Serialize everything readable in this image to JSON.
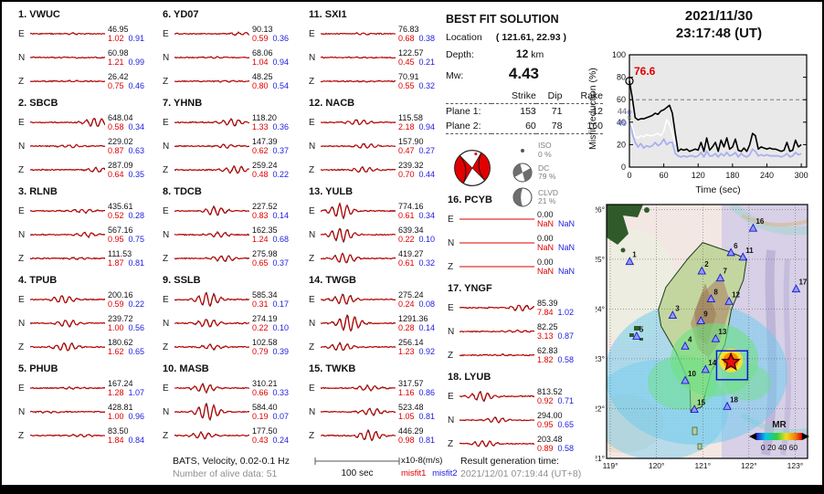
{
  "header": {
    "date": "2021/11/30",
    "time": "23:17:48 (UT)"
  },
  "solution": {
    "title": "BEST FIT SOLUTION",
    "location_label": "Location",
    "location_value": "( 121.61, 22.93 )",
    "depth_label": "Depth:",
    "depth_value": "12",
    "depth_unit": "km",
    "mw_label": "Mw:",
    "mw_value": "4.43",
    "table": {
      "headers": [
        "Strike",
        "Dip",
        "Rake"
      ],
      "rows": [
        {
          "label": "Plane 1:",
          "strike": "153",
          "dip": "71",
          "rake": "12"
        },
        {
          "label": "Plane 2:",
          "strike": "60",
          "dip": "78",
          "rake": "160"
        }
      ]
    },
    "components": [
      {
        "name": "ISO",
        "pct": "0 %"
      },
      {
        "name": "DC",
        "pct": "79 %"
      },
      {
        "name": "CLVD",
        "pct": "21 %"
      }
    ]
  },
  "stations": [
    {
      "num": "1.",
      "name": "VWUC",
      "traces": [
        {
          "c": "E",
          "amp": "46.95",
          "m1": "1.02",
          "m2": "0.91",
          "a": 0.06,
          "p": 0.6
        },
        {
          "c": "N",
          "amp": "60.98",
          "m1": "1.21",
          "m2": "0.99",
          "a": 0.06,
          "p": 0.5
        },
        {
          "c": "Z",
          "amp": "26.42",
          "m1": "0.75",
          "m2": "0.46",
          "a": 0.06,
          "p": 0.55
        }
      ]
    },
    {
      "num": "2.",
      "name": "SBCB",
      "traces": [
        {
          "c": "E",
          "amp": "648.04",
          "m1": "0.58",
          "m2": "0.34",
          "a": 0.55,
          "p": 0.88
        },
        {
          "c": "N",
          "amp": "229.02",
          "m1": "0.87",
          "m2": "0.63",
          "a": 0.18,
          "p": 0.55
        },
        {
          "c": "Z",
          "amp": "287.09",
          "m1": "0.64",
          "m2": "0.35",
          "a": 0.25,
          "p": 0.9
        }
      ]
    },
    {
      "num": "3.",
      "name": "RLNB",
      "traces": [
        {
          "c": "E",
          "amp": "435.61",
          "m1": "0.52",
          "m2": "0.28",
          "a": 0.22,
          "p": 0.72
        },
        {
          "c": "N",
          "amp": "567.16",
          "m1": "0.95",
          "m2": "0.75",
          "a": 0.28,
          "p": 0.75
        },
        {
          "c": "Z",
          "amp": "111.53",
          "m1": "1.87",
          "m2": "0.81",
          "a": 0.1,
          "p": 0.6
        }
      ]
    },
    {
      "num": "4.",
      "name": "TPUB",
      "traces": [
        {
          "c": "E",
          "amp": "200.16",
          "m1": "0.59",
          "m2": "0.22",
          "a": 0.45,
          "p": 0.45
        },
        {
          "c": "N",
          "amp": "239.72",
          "m1": "1.00",
          "m2": "0.56",
          "a": 0.4,
          "p": 0.5
        },
        {
          "c": "Z",
          "amp": "180.62",
          "m1": "1.62",
          "m2": "0.65",
          "a": 0.5,
          "p": 0.48
        }
      ]
    },
    {
      "num": "5.",
      "name": "PHUB",
      "traces": [
        {
          "c": "E",
          "amp": "167.24",
          "m1": "1.28",
          "m2": "1.07",
          "a": 0.1,
          "p": 0.55
        },
        {
          "c": "N",
          "amp": "428.81",
          "m1": "1.00",
          "m2": "0.96",
          "a": 0.12,
          "p": 0.25
        },
        {
          "c": "Z",
          "amp": "83.50",
          "m1": "1.84",
          "m2": "0.84",
          "a": 0.14,
          "p": 0.7
        }
      ]
    },
    {
      "num": "6.",
      "name": "YD07",
      "traces": [
        {
          "c": "E",
          "amp": "90.13",
          "m1": "0.59",
          "m2": "0.36",
          "a": 0.15,
          "p": 0.88
        },
        {
          "c": "N",
          "amp": "68.06",
          "m1": "1.04",
          "m2": "0.94",
          "a": 0.07,
          "p": 0.5
        },
        {
          "c": "Z",
          "amp": "48.25",
          "m1": "0.80",
          "m2": "0.54",
          "a": 0.1,
          "p": 0.7
        }
      ]
    },
    {
      "num": "7.",
      "name": "YHNB",
      "traces": [
        {
          "c": "E",
          "amp": "118.20",
          "m1": "1.33",
          "m2": "0.36",
          "a": 0.4,
          "p": 0.78
        },
        {
          "c": "N",
          "amp": "147.39",
          "m1": "0.62",
          "m2": "0.37",
          "a": 0.2,
          "p": 0.68
        },
        {
          "c": "Z",
          "amp": "259.24",
          "m1": "0.48",
          "m2": "0.22",
          "a": 0.45,
          "p": 0.82
        }
      ]
    },
    {
      "num": "8.",
      "name": "TDCB",
      "traces": [
        {
          "c": "E",
          "amp": "227.52",
          "m1": "0.83",
          "m2": "0.14",
          "a": 0.5,
          "p": 0.55
        },
        {
          "c": "N",
          "amp": "162.35",
          "m1": "1.24",
          "m2": "0.68",
          "a": 0.3,
          "p": 0.6
        },
        {
          "c": "Z",
          "amp": "275.98",
          "m1": "0.65",
          "m2": "0.37",
          "a": 0.35,
          "p": 0.65
        }
      ]
    },
    {
      "num": "9.",
      "name": "SSLB",
      "traces": [
        {
          "c": "E",
          "amp": "585.34",
          "m1": "0.31",
          "m2": "0.17",
          "a": 0.8,
          "p": 0.45
        },
        {
          "c": "N",
          "amp": "274.19",
          "m1": "0.22",
          "m2": "0.10",
          "a": 0.5,
          "p": 0.45
        },
        {
          "c": "Z",
          "amp": "102.58",
          "m1": "0.79",
          "m2": "0.39",
          "a": 0.28,
          "p": 0.5
        }
      ]
    },
    {
      "num": "10.",
      "name": "MASB",
      "traces": [
        {
          "c": "E",
          "amp": "310.21",
          "m1": "0.66",
          "m2": "0.33",
          "a": 0.5,
          "p": 0.4
        },
        {
          "c": "N",
          "amp": "584.40",
          "m1": "0.19",
          "m2": "0.07",
          "a": 1.0,
          "p": 0.45
        },
        {
          "c": "Z",
          "amp": "177.50",
          "m1": "0.43",
          "m2": "0.24",
          "a": 0.4,
          "p": 0.38
        }
      ]
    },
    {
      "num": "11.",
      "name": "SXI1",
      "traces": [
        {
          "c": "E",
          "amp": "76.83",
          "m1": "0.68",
          "m2": "0.38",
          "a": 0.08,
          "p": 0.6
        },
        {
          "c": "N",
          "amp": "122.57",
          "m1": "0.45",
          "m2": "0.21",
          "a": 0.08,
          "p": 0.5
        },
        {
          "c": "Z",
          "amp": "70.91",
          "m1": "0.55",
          "m2": "0.32",
          "a": 0.08,
          "p": 0.6
        }
      ]
    },
    {
      "num": "12.",
      "name": "NACB",
      "traces": [
        {
          "c": "E",
          "amp": "115.58",
          "m1": "2.18",
          "m2": "0.94",
          "a": 0.3,
          "p": 0.5
        },
        {
          "c": "N",
          "amp": "157.90",
          "m1": "0.47",
          "m2": "0.27",
          "a": 0.28,
          "p": 0.6
        },
        {
          "c": "Z",
          "amp": "239.32",
          "m1": "0.70",
          "m2": "0.44",
          "a": 0.33,
          "p": 0.58
        }
      ]
    },
    {
      "num": "13.",
      "name": "YULB",
      "traces": [
        {
          "c": "E",
          "amp": "774.16",
          "m1": "0.61",
          "m2": "0.34",
          "a": 0.85,
          "p": 0.28
        },
        {
          "c": "N",
          "amp": "639.34",
          "m1": "0.22",
          "m2": "0.10",
          "a": 0.8,
          "p": 0.28
        },
        {
          "c": "Z",
          "amp": "419.27",
          "m1": "0.61",
          "m2": "0.32",
          "a": 0.6,
          "p": 0.32
        }
      ]
    },
    {
      "num": "14.",
      "name": "TWGB",
      "traces": [
        {
          "c": "E",
          "amp": "275.24",
          "m1": "0.24",
          "m2": "0.08",
          "a": 0.6,
          "p": 0.32
        },
        {
          "c": "N",
          "amp": "1291.36",
          "m1": "0.28",
          "m2": "0.14",
          "a": 1.0,
          "p": 0.38
        },
        {
          "c": "Z",
          "amp": "256.14",
          "m1": "1.23",
          "m2": "0.92",
          "a": 0.45,
          "p": 0.28
        }
      ]
    },
    {
      "num": "15.",
      "name": "TWKB",
      "traces": [
        {
          "c": "E",
          "amp": "317.57",
          "m1": "1.16",
          "m2": "0.86",
          "a": 0.3,
          "p": 0.65
        },
        {
          "c": "N",
          "amp": "523.48",
          "m1": "1.05",
          "m2": "0.81",
          "a": 0.38,
          "p": 0.68
        },
        {
          "c": "Z",
          "amp": "446.29",
          "m1": "0.98",
          "m2": "0.81",
          "a": 0.6,
          "p": 0.66
        }
      ]
    },
    {
      "num": "16.",
      "name": "PCYB",
      "traces": [
        {
          "c": "E",
          "amp": "0.00",
          "m1": "NaN",
          "m2": "NaN",
          "a": 0,
          "p": 0.5
        },
        {
          "c": "N",
          "amp": "0.00",
          "m1": "NaN",
          "m2": "NaN",
          "a": 0,
          "p": 0.5
        },
        {
          "c": "Z",
          "amp": "0.00",
          "m1": "NaN",
          "m2": "NaN",
          "a": 0,
          "p": 0.5
        }
      ]
    },
    {
      "num": "17.",
      "name": "YNGF",
      "traces": [
        {
          "c": "E",
          "amp": "85.39",
          "m1": "7.84",
          "m2": "1.02",
          "a": 0.35,
          "p": 0.82
        },
        {
          "c": "N",
          "amp": "82.25",
          "m1": "3.13",
          "m2": "0.87",
          "a": 0.12,
          "p": 0.8
        },
        {
          "c": "Z",
          "amp": "62.83",
          "m1": "1.82",
          "m2": "0.58",
          "a": 0.08,
          "p": 0.6
        }
      ]
    },
    {
      "num": "18.",
      "name": "LYUB",
      "traces": [
        {
          "c": "E",
          "amp": "813.52",
          "m1": "0.92",
          "m2": "0.71",
          "a": 0.55,
          "p": 0.3
        },
        {
          "c": "N",
          "amp": "294.00",
          "m1": "0.95",
          "m2": "0.65",
          "a": 0.3,
          "p": 0.5
        },
        {
          "c": "Z",
          "amp": "203.48",
          "m1": "0.89",
          "m2": "0.58",
          "a": 0.38,
          "p": 0.33
        }
      ]
    }
  ],
  "misfit_plot": {
    "ylabel": "Misfit reduction (%)",
    "xlabel": "Time (sec)",
    "yticks": [
      0,
      20,
      40,
      60,
      80,
      100
    ],
    "xticks": [
      0,
      60,
      120,
      180,
      240,
      300
    ],
    "threshold": 60,
    "start_labels": {
      "black": "76.6",
      "white": "44",
      "blue": "49"
    },
    "dt": 5,
    "series_black": [
      76.6,
      62,
      44,
      42,
      43,
      43,
      44,
      45,
      46,
      48,
      47,
      50,
      51,
      53,
      55,
      48,
      30,
      14,
      16,
      15,
      16,
      14,
      15,
      16,
      15,
      22,
      14,
      26,
      15,
      18,
      22,
      14,
      24,
      18,
      26,
      16,
      18,
      25,
      15,
      14,
      17,
      14,
      20,
      30,
      28,
      16,
      18,
      17,
      16,
      17,
      16,
      16,
      15,
      14,
      15,
      22,
      14,
      15,
      24,
      18,
      20
    ],
    "series_white": [
      44,
      36,
      27,
      26,
      28,
      27,
      29,
      28,
      28,
      29,
      30,
      28,
      32,
      42,
      38,
      30,
      20
    ],
    "series_blue": [
      49,
      30,
      22,
      18,
      21,
      17,
      19,
      18,
      19,
      22,
      19,
      21,
      25,
      20,
      22,
      22,
      12,
      10,
      9,
      10,
      9,
      10,
      10,
      9,
      10,
      13,
      9,
      14,
      10,
      10,
      12,
      9,
      12,
      10,
      13,
      10,
      11,
      13,
      9,
      12,
      10,
      9,
      11,
      16,
      14,
      10,
      11,
      10,
      11,
      10,
      10,
      10,
      10,
      9,
      10,
      12,
      9,
      10,
      13,
      11,
      12
    ]
  },
  "map": {
    "xticks": [
      "119°",
      "120°",
      "121°",
      "122°",
      "123°"
    ],
    "xtick_lons": [
      119,
      120,
      121,
      122,
      123
    ],
    "yticks": [
      "26°",
      "25°",
      "24°",
      "23°",
      "22°",
      "21°"
    ],
    "ytick_lats": [
      26,
      25,
      24,
      23,
      22,
      21
    ],
    "stations": [
      {
        "n": "1",
        "lon": 119.42,
        "lat": 24.95
      },
      {
        "n": "2",
        "lon": 120.98,
        "lat": 24.76
      },
      {
        "n": "3",
        "lon": 120.35,
        "lat": 23.87
      },
      {
        "n": "4",
        "lon": 120.62,
        "lat": 23.25
      },
      {
        "n": "5",
        "lon": 119.57,
        "lat": 23.45
      },
      {
        "n": "6",
        "lon": 121.61,
        "lat": 25.13
      },
      {
        "n": "7",
        "lon": 121.38,
        "lat": 24.62
      },
      {
        "n": "8",
        "lon": 121.18,
        "lat": 24.2
      },
      {
        "n": "9",
        "lon": 120.96,
        "lat": 23.76
      },
      {
        "n": "10",
        "lon": 120.62,
        "lat": 22.56
      },
      {
        "n": "11",
        "lon": 121.87,
        "lat": 25.04
      },
      {
        "n": "12",
        "lon": 121.57,
        "lat": 24.15
      },
      {
        "n": "13",
        "lon": 121.28,
        "lat": 23.4
      },
      {
        "n": "14",
        "lon": 121.06,
        "lat": 22.78
      },
      {
        "n": "15",
        "lon": 120.82,
        "lat": 21.98
      },
      {
        "n": "16",
        "lon": 122.09,
        "lat": 25.62
      },
      {
        "n": "17",
        "lon": 123.02,
        "lat": 24.4
      },
      {
        "n": "18",
        "lon": 121.53,
        "lat": 22.04
      }
    ],
    "epicenter": {
      "lon": 121.61,
      "lat": 22.93
    },
    "search_box": {
      "lon_min": 121.3,
      "lon_max": 121.97,
      "lat_min": 22.58,
      "lat_max": 23.16
    },
    "legend": {
      "label": "MR",
      "ticks": "0 20 40 60"
    }
  },
  "footer": {
    "band_text": "BATS, Velocity, 0.02-0.1 Hz",
    "alive_text": "Number of alive data: 51",
    "scale_label": "100 sec",
    "unit_text": "x10-8(m/s)",
    "misfit1_label": "misfit1",
    "misfit2_label": "misfit2",
    "result_label": "Result generation time:",
    "result_time": "2021/12/01 07:19:44 (UT+8)"
  },
  "colors": {
    "misfit1": "#e10000",
    "misfit2": "#2020e0",
    "trace_observed": "#111111",
    "trace_synthetic": "#d90000",
    "curve_blue": "#a9b0f0"
  }
}
